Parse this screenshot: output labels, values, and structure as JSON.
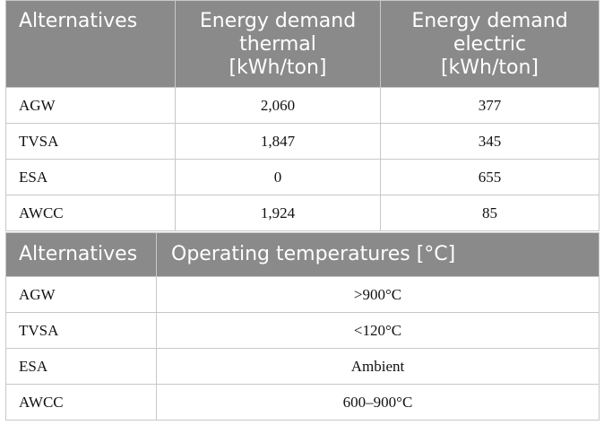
{
  "table1": {
    "headers": [
      "Alternatives",
      "Energy demand thermal [kWh/ton]",
      "Energy demand electric [kWh/ton]"
    ],
    "header_lines": [
      [
        "Alternatives"
      ],
      [
        "Energy demand",
        "thermal",
        "[kWh/ton]"
      ],
      [
        "Energy demand",
        "electric",
        "[kWh/ton]"
      ]
    ],
    "rows": [
      [
        "AGW",
        "2,060",
        "377"
      ],
      [
        "TVSA",
        "1,847",
        "345"
      ],
      [
        "ESA",
        "0",
        "655"
      ],
      [
        "AWCC",
        "1,924",
        "85"
      ]
    ]
  },
  "table2": {
    "headers": [
      "Alternatives",
      "Operating temperatures [°C]"
    ],
    "rows": [
      [
        "AGW",
        ">900°C"
      ],
      [
        "TVSA",
        "<120°C"
      ],
      [
        "ESA",
        "Ambient"
      ],
      [
        "AWCC",
        "600–900°C"
      ]
    ]
  },
  "colors": {
    "header_bg": "#8a8a8a",
    "header_text": "#ffffff",
    "border": "#c8c8c8"
  }
}
